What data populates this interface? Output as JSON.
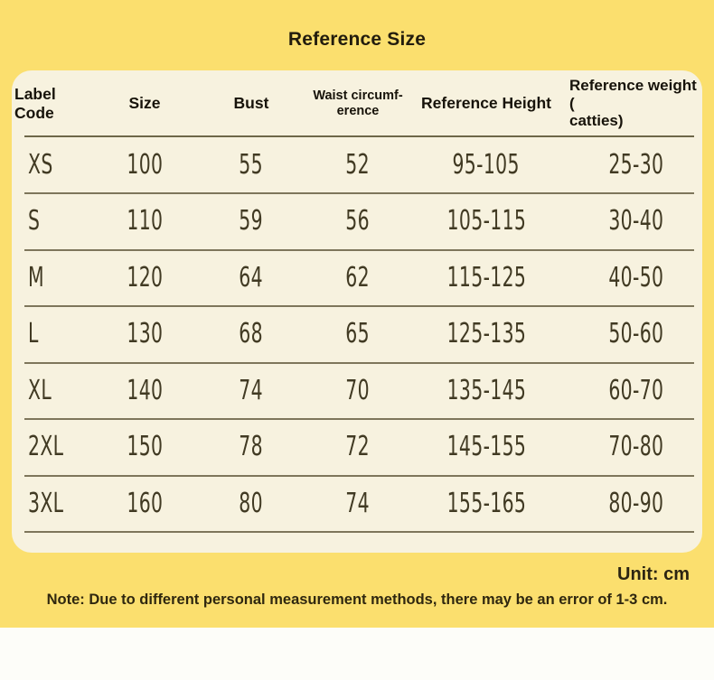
{
  "page": {
    "title": "Reference Size",
    "unit_label": "Unit: cm",
    "note": "Note: Due to different personal measurement methods, there may be an error of 1-3 cm."
  },
  "colors": {
    "background_yellow": "#fbdf6e",
    "panel_cream": "#f7f2df",
    "header_text": "#17130a",
    "data_text": "#413a23",
    "divider": "#7e765b",
    "bottom_strip": "#fdfdf9"
  },
  "table": {
    "headers": [
      "Label Code",
      "Size",
      "Bust",
      "Waist circumf-\nerence",
      "Reference Height",
      "Reference weight (\ncatties)"
    ],
    "rows": [
      [
        "XS",
        "100",
        "55",
        "52",
        "95-105",
        "25-30"
      ],
      [
        "S",
        "110",
        "59",
        "56",
        "105-115",
        "30-40"
      ],
      [
        "M",
        "120",
        "64",
        "62",
        "115-125",
        "40-50"
      ],
      [
        "L",
        "130",
        "68",
        "65",
        "125-135",
        "50-60"
      ],
      [
        "XL",
        "140",
        "74",
        "70",
        "135-145",
        "60-70"
      ],
      [
        "2XL",
        "150",
        "78",
        "72",
        "145-155",
        "70-80"
      ],
      [
        "3XL",
        "160",
        "80",
        "74",
        "155-165",
        "80-90"
      ]
    ]
  }
}
